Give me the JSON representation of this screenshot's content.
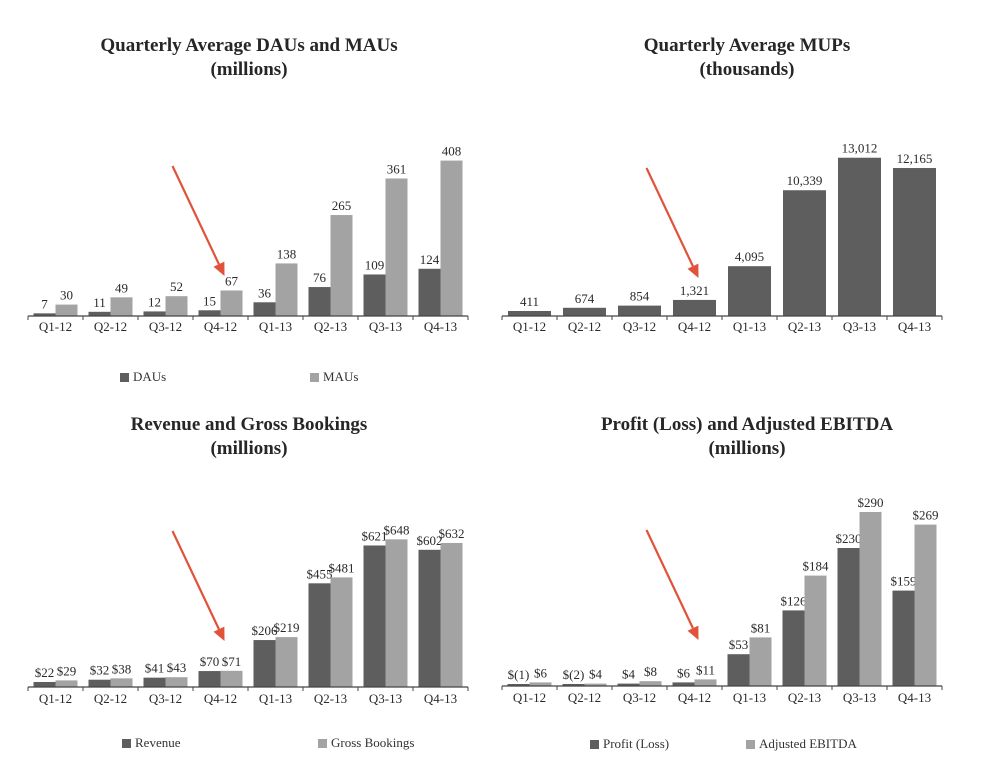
{
  "colors": {
    "dark_series": "#5e5e5e",
    "light_series": "#a3a3a3",
    "axis": "#444444",
    "arrow": "#e0533a"
  },
  "chart_data": [
    {
      "id": "dau_mau",
      "type": "bar",
      "title": "Quarterly Average DAUs and MAUs",
      "subtitle": "(millions)",
      "categories": [
        "Q1-12",
        "Q2-12",
        "Q3-12",
        "Q4-12",
        "Q1-13",
        "Q2-13",
        "Q3-13",
        "Q4-13"
      ],
      "series": [
        {
          "name": "DAUs",
          "color": "#5e5e5e",
          "values": [
            7,
            11,
            12,
            15,
            36,
            76,
            109,
            124
          ],
          "labels": [
            "7",
            "11",
            "12",
            "15",
            "36",
            "76",
            "109",
            "124"
          ]
        },
        {
          "name": "MAUs",
          "color": "#a3a3a3",
          "values": [
            30,
            49,
            52,
            67,
            138,
            265,
            361,
            408
          ],
          "labels": [
            "30",
            "49",
            "52",
            "67",
            "138",
            "265",
            "361",
            "408"
          ]
        }
      ],
      "ylim": [
        0,
        420
      ],
      "legend": "bottom",
      "annotation": {
        "type": "arrow",
        "points_to": "Q4-12"
      }
    },
    {
      "id": "mups",
      "type": "bar",
      "title": "Quarterly Average MUPs",
      "subtitle": "(thousands)",
      "categories": [
        "Q1-12",
        "Q2-12",
        "Q3-12",
        "Q4-12",
        "Q1-13",
        "Q2-13",
        "Q3-13",
        "Q4-13"
      ],
      "series": [
        {
          "color": "#5e5e5e",
          "values": [
            411,
            674,
            854,
            1321,
            4095,
            10339,
            13012,
            12165
          ],
          "labels": [
            "411",
            "674",
            "854",
            "1,321",
            "4,095",
            "10,339",
            "13,012",
            "12,165"
          ]
        }
      ],
      "ylim": [
        0,
        13400
      ],
      "annotation": {
        "type": "arrow",
        "points_to": "Q4-12"
      }
    },
    {
      "id": "revenue",
      "type": "bar",
      "title": "Revenue and Gross Bookings",
      "subtitle": "(millions)",
      "categories": [
        "Q1-12",
        "Q2-12",
        "Q3-12",
        "Q4-12",
        "Q1-13",
        "Q2-13",
        "Q3-13",
        "Q4-13"
      ],
      "series": [
        {
          "name": "Revenue",
          "color": "#5e5e5e",
          "values": [
            22,
            32,
            41,
            70,
            206,
            455,
            621,
            602
          ],
          "labels": [
            "$22",
            "$32",
            "$41",
            "$70",
            "$206",
            "$455",
            "$621",
            "$602"
          ]
        },
        {
          "name": "Gross Bookings",
          "color": "#a3a3a3",
          "values": [
            29,
            38,
            43,
            71,
            219,
            481,
            648,
            632
          ],
          "labels": [
            "$29",
            "$38",
            "$43",
            "$71",
            "$219",
            "$481",
            "$648",
            "$632"
          ]
        }
      ],
      "ylim": [
        0,
        667
      ],
      "legend": "bottom",
      "annotation": {
        "type": "arrow",
        "points_to": "Q4-12"
      }
    },
    {
      "id": "profit",
      "type": "bar",
      "title": "Profit (Loss) and Adjusted EBITDA",
      "subtitle": "(millions)",
      "categories": [
        "Q1-12",
        "Q2-12",
        "Q3-12",
        "Q4-12",
        "Q1-13",
        "Q2-13",
        "Q3-13",
        "Q4-13"
      ],
      "series": [
        {
          "name": "Profit (Loss)",
          "color": "#5e5e5e",
          "values": [
            -1,
            -2,
            4,
            6,
            53,
            126,
            230,
            159
          ],
          "labels": [
            "$(1)",
            "$(2)",
            "$4",
            "$6",
            "$53",
            "$126",
            "$230",
            "$159"
          ]
        },
        {
          "name": "Adjusted EBITDA",
          "color": "#a3a3a3",
          "values": [
            6,
            4,
            8,
            11,
            81,
            184,
            290,
            269
          ],
          "labels": [
            "$6",
            "$4",
            "$8",
            "$11",
            "$81",
            "$184",
            "$290",
            "$269"
          ]
        }
      ],
      "ylim": [
        0,
        300
      ],
      "legend": "bottom",
      "annotation": {
        "type": "arrow",
        "points_to": "Q4-12"
      }
    }
  ]
}
